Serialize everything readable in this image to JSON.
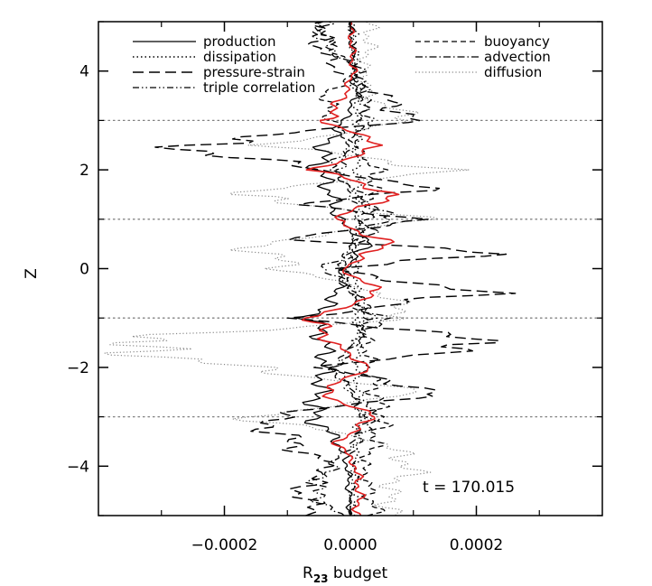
{
  "chart_data": {
    "type": "line",
    "annotation": "t = 170.015",
    "xlabel": {
      "main": "R",
      "sub": "23",
      "suffix": " budget"
    },
    "ylabel": "Z",
    "xlim": [
      -0.0004,
      0.0004
    ],
    "ylim": [
      -5,
      5
    ],
    "x_ticks": [
      {
        "value": -0.0002,
        "label": "−0.0002"
      },
      {
        "value": 0.0,
        "label": "0.0000"
      },
      {
        "value": 0.0002,
        "label": "0.0002"
      }
    ],
    "y_ticks": [
      {
        "value": -4,
        "label": "−4"
      },
      {
        "value": -2,
        "label": "−2"
      },
      {
        "value": 0,
        "label": "0"
      },
      {
        "value": 2,
        "label": "2"
      },
      {
        "value": 4,
        "label": "4"
      }
    ],
    "horizontal_reference_lines_z": [
      -3,
      -1,
      1,
      3
    ],
    "grid": false,
    "legend_placement": "top, two columns",
    "series": [
      {
        "name": "production",
        "style": "solid",
        "color": "#000000",
        "column": 0,
        "profile": [
          [
            -5,
            0
          ],
          [
            -4,
            -4e-06
          ],
          [
            -3.5,
            -2e-05
          ],
          [
            -3,
            -6e-05
          ],
          [
            -2.5,
            -5e-05
          ],
          [
            -2,
            -4e-05
          ],
          [
            -1.5,
            -4e-05
          ],
          [
            -1,
            -6e-05
          ],
          [
            -0.5,
            -2e-05
          ],
          [
            0,
            -1e-05
          ],
          [
            0.5,
            3e-05
          ],
          [
            1,
            -2e-05
          ],
          [
            1.5,
            -3e-05
          ],
          [
            2,
            -5e-05
          ],
          [
            2.5,
            -4e-05
          ],
          [
            3,
            -1e-05
          ],
          [
            3.5,
            1e-05
          ],
          [
            4,
            5e-06
          ],
          [
            5,
            0
          ]
        ]
      },
      {
        "name": "dissipation",
        "style": "dotted",
        "color": "#000000",
        "column": 0,
        "profile": [
          [
            -5,
            5e-06
          ],
          [
            -4,
            1e-05
          ],
          [
            -3,
            1.5e-05
          ],
          [
            -2,
            1e-05
          ],
          [
            -1,
            1.2e-05
          ],
          [
            0,
            8e-06
          ],
          [
            1,
            1e-05
          ],
          [
            2,
            1.2e-05
          ],
          [
            3,
            1e-05
          ],
          [
            4,
            8e-06
          ],
          [
            5,
            5e-06
          ]
        ]
      },
      {
        "name": "pressure-strain",
        "style": "longdash",
        "color": "#000000",
        "column": 0,
        "profile": [
          [
            -5,
            -5e-05
          ],
          [
            -4.5,
            -8e-05
          ],
          [
            -4,
            -3e-05
          ],
          [
            -3.5,
            -0.0001
          ],
          [
            -3,
            -0.00014
          ],
          [
            -2.5,
            0.00015
          ],
          [
            -2,
            -5e-05
          ],
          [
            -1.5,
            0.00025
          ],
          [
            -1,
            -8e-05
          ],
          [
            -0.5,
            0.0002
          ],
          [
            0,
            -3e-05
          ],
          [
            0.3,
            0.00025
          ],
          [
            0.6,
            -0.0001
          ],
          [
            1,
            0.00012
          ],
          [
            1.3,
            -9e-05
          ],
          [
            1.6,
            0.00013
          ],
          [
            2,
            -5e-05
          ],
          [
            2.5,
            -0.00028
          ],
          [
            3,
            0.0001
          ],
          [
            3.5,
            5e-05
          ],
          [
            4,
            -2e-05
          ],
          [
            4.5,
            -5e-05
          ],
          [
            5,
            -4e-05
          ]
        ]
      },
      {
        "name": "triple correlation",
        "style": "dashdotdot",
        "color": "#000000",
        "column": 0,
        "profile": [
          [
            -5,
            0
          ],
          [
            -4,
            3e-06
          ],
          [
            -3,
            2e-05
          ],
          [
            -2,
            -2e-05
          ],
          [
            -1,
            3e-05
          ],
          [
            0,
            -1.5e-05
          ],
          [
            1,
            2e-05
          ],
          [
            2,
            -2e-05
          ],
          [
            3,
            3e-05
          ],
          [
            4,
            1e-05
          ],
          [
            5,
            0
          ]
        ]
      },
      {
        "name": "buoyancy",
        "style": "dashed",
        "color": "#000000",
        "column": 1,
        "profile": [
          [
            -5,
            4e-05
          ],
          [
            -4.5,
            3e-05
          ],
          [
            -4,
            2e-05
          ],
          [
            -3.5,
            4e-05
          ],
          [
            -3,
            5e-05
          ],
          [
            -2,
            3e-05
          ],
          [
            -1,
            2e-05
          ],
          [
            0,
            -1e-05
          ],
          [
            1,
            3e-05
          ],
          [
            2,
            4e-05
          ],
          [
            3,
            -3e-05
          ],
          [
            3.5,
            -4e-05
          ],
          [
            4,
            1e-05
          ],
          [
            4.5,
            -3e-05
          ],
          [
            5,
            -5e-05
          ]
        ]
      },
      {
        "name": "advection",
        "style": "dashdot",
        "color": "#000000",
        "column": 1,
        "profile": [
          [
            -5,
            -2e-05
          ],
          [
            -4.5,
            -6e-05
          ],
          [
            -4,
            -3e-05
          ],
          [
            -3,
            4e-05
          ],
          [
            -2,
            -3e-05
          ],
          [
            -1,
            5e-05
          ],
          [
            0,
            -4e-05
          ],
          [
            1,
            6e-05
          ],
          [
            2,
            -3e-05
          ],
          [
            3,
            2e-05
          ],
          [
            4,
            2e-05
          ],
          [
            4.5,
            -4e-05
          ],
          [
            5,
            -5e-05
          ]
        ]
      },
      {
        "name": "diffusion",
        "style": "dotted-gray",
        "color": "#888888",
        "column": 1,
        "profile": [
          [
            -5,
            7e-05
          ],
          [
            -4.5,
            6e-05
          ],
          [
            -4,
            0.0001
          ],
          [
            -3.5,
            5e-05
          ],
          [
            -3,
            -0.00016
          ],
          [
            -2.5,
            0.00012
          ],
          [
            -2,
            -0.00018
          ],
          [
            -1.5,
            -0.0004
          ],
          [
            -1,
            0.0001
          ],
          [
            -0.5,
            5e-05
          ],
          [
            0,
            -0.0001
          ],
          [
            0.5,
            -0.00015
          ],
          [
            1,
            0.00012
          ],
          [
            1.5,
            -0.0002
          ],
          [
            2,
            0.00016
          ],
          [
            2.5,
            -0.00012
          ],
          [
            3,
            0.0001
          ],
          [
            3.5,
            3e-05
          ],
          [
            4,
            2e-05
          ],
          [
            4.5,
            3e-05
          ],
          [
            5,
            3e-05
          ]
        ]
      },
      {
        "style": "solid-red",
        "color": "#e02020",
        "column": -1,
        "profile": [
          [
            -5,
            1e-05
          ],
          [
            -4.5,
            1.5e-05
          ],
          [
            -4,
            8e-06
          ],
          [
            -3.5,
            -2e-05
          ],
          [
            -3,
            4e-05
          ],
          [
            -2.5,
            -5e-05
          ],
          [
            -2,
            3e-05
          ],
          [
            -1.5,
            -3e-05
          ],
          [
            -1,
            -6e-05
          ],
          [
            -0.5,
            5e-05
          ],
          [
            0,
            -1.5e-05
          ],
          [
            0.5,
            6e-05
          ],
          [
            1,
            -3e-05
          ],
          [
            1.5,
            7e-05
          ],
          [
            2,
            -5e-05
          ],
          [
            2.5,
            5e-05
          ],
          [
            3,
            -4e-05
          ],
          [
            3.5,
            -1e-05
          ],
          [
            4,
            5e-06
          ],
          [
            4.5,
            2e-06
          ],
          [
            5,
            0
          ]
        ]
      }
    ]
  }
}
